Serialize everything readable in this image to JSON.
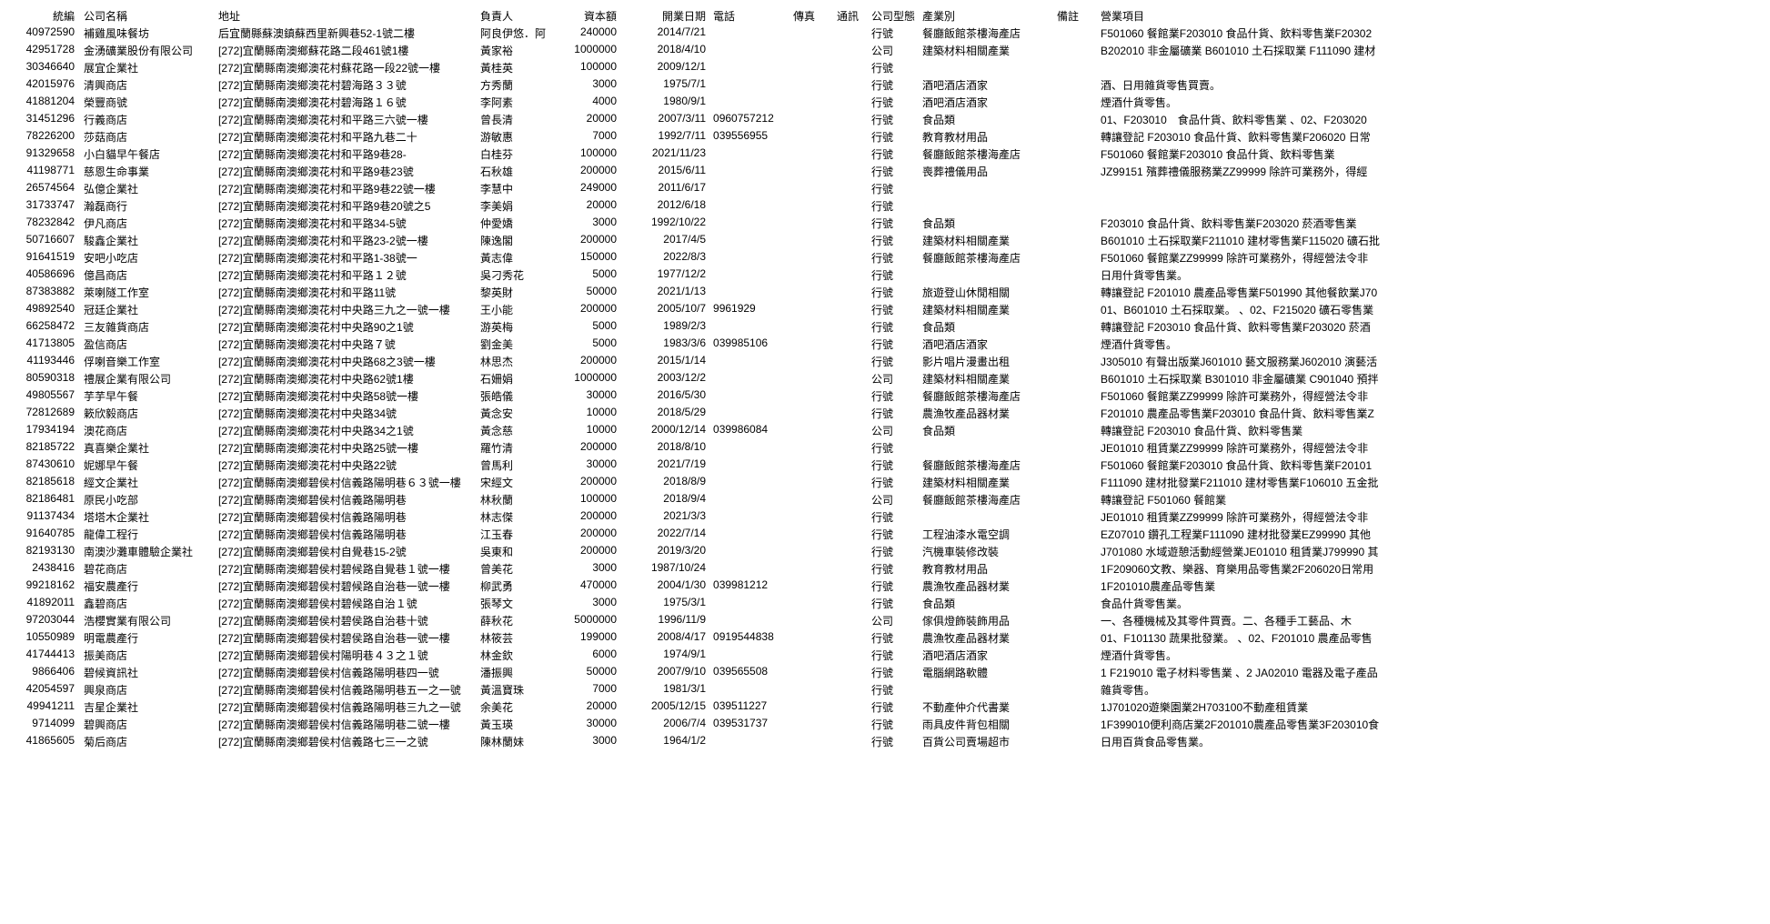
{
  "columns": [
    "統編",
    "公司名稱",
    "地址",
    "負責人",
    "資本額",
    "開業日期",
    "電話",
    "傳真",
    "通訊",
    "公司型態",
    "產業別",
    "備註",
    "營業項目"
  ],
  "rows": [
    [
      "40972590",
      "補雞風味餐坊",
      "后宜蘭縣蘇澳鎮蘇西里新興巷52-1號二樓",
      "阿良伊悠．阿",
      "240000",
      "2014/7/21",
      "",
      "",
      "",
      "行號",
      "餐廳飯館茶樓海產店",
      "",
      "F501060 餐館業F203010 食品什貨、飲料零售業F20302"
    ],
    [
      "42951728",
      "金湧礦業股份有限公司",
      "[272]宜蘭縣南澳鄉蘇花路二段461號1樓",
      "黃家裕",
      "1000000",
      "2018/4/10",
      "",
      "",
      "",
      "公司",
      "建築材料相關產業",
      "",
      "B202010 非金屬礦業 B601010 土石採取業 F111090 建材"
    ],
    [
      "30346640",
      "展宜企業社",
      "[272]宜蘭縣南澳鄉澳花村蘇花路一段22號一樓",
      "黃桂英",
      "100000",
      "2009/12/1",
      "",
      "",
      "",
      "行號",
      "",
      "",
      ""
    ],
    [
      "42015976",
      "清興商店",
      "[272]宜蘭縣南澳鄉澳花村碧海路３３號",
      "方秀蘭",
      "3000",
      "1975/7/1",
      "",
      "",
      "",
      "行號",
      "酒吧酒店酒家",
      "",
      "酒、日用雜貨零售買賣。"
    ],
    [
      "41881204",
      "榮豐商號",
      "[272]宜蘭縣南澳鄉澳花村碧海路１６號",
      "李阿素",
      "4000",
      "1980/9/1",
      "",
      "",
      "",
      "行號",
      "酒吧酒店酒家",
      "",
      "煙酒什貨零售。"
    ],
    [
      "31451296",
      "行義商店",
      "[272]宜蘭縣南澳鄉澳花村和平路三六號一樓",
      "曾長清",
      "20000",
      "2007/3/11",
      "0960757212",
      "",
      "",
      "行號",
      "食品類",
      "",
      "01、F203010　食品什貨、飲料零售業 、02、F203020"
    ],
    [
      "78226200",
      "莎菇商店",
      "[272]宜蘭縣南澳鄉澳花村和平路九巷二十",
      "游敏惠",
      "7000",
      "1992/7/11",
      "039556955",
      "",
      "",
      "行號",
      "教育教材用品",
      "",
      "轉讓登記 F203010 食品什貨、飲料零售業F206020 日常"
    ],
    [
      "91329658",
      "小白貓早午餐店",
      "[272]宜蘭縣南澳鄉澳花村和平路9巷28-",
      "白桂芬",
      "100000",
      "2021/11/23",
      "",
      "",
      "",
      "行號",
      "餐廳飯館茶樓海產店",
      "",
      "F501060 餐館業F203010 食品什貨、飲料零售業"
    ],
    [
      "41198771",
      "慈恩生命事業",
      "[272]宜蘭縣南澳鄉澳花村和平路9巷23號",
      "石秋雄",
      "200000",
      "2015/6/11",
      "",
      "",
      "",
      "行號",
      "喪葬禮儀用品",
      "",
      "JZ99151 殯葬禮儀服務業ZZ99999 除許可業務外，得經"
    ],
    [
      "26574564",
      "弘億企業社",
      "[272]宜蘭縣南澳鄉澳花村和平路9巷22號一樓",
      "李慧中",
      "249000",
      "2011/6/17",
      "",
      "",
      "",
      "行號",
      "",
      "",
      ""
    ],
    [
      "31733747",
      "瀚磊商行",
      "[272]宜蘭縣南澳鄉澳花村和平路9巷20號之5",
      "李美娟",
      "20000",
      "2012/6/18",
      "",
      "",
      "",
      "行號",
      "",
      "",
      ""
    ],
    [
      "78232842",
      "伊凡商店",
      "[272]宜蘭縣南澳鄉澳花村和平路34-5號",
      "仲愛嬌",
      "3000",
      "1992/10/22",
      "",
      "",
      "",
      "行號",
      "食品類",
      "",
      "F203010 食品什貨、飲料零售業F203020 菸酒零售業"
    ],
    [
      "50716607",
      "駿鑫企業社",
      "[272]宜蘭縣南澳鄉澳花村和平路23-2號一樓",
      "陳逸閣",
      "200000",
      "2017/4/5",
      "",
      "",
      "",
      "行號",
      "建築材料相關產業",
      "",
      "B601010 土石採取業F211010 建材零售業F115020 礦石批"
    ],
    [
      "91641519",
      "安吧小吃店",
      "[272]宜蘭縣南澳鄉澳花村和平路1-38號一",
      "黃志偉",
      "150000",
      "2022/8/3",
      "",
      "",
      "",
      "行號",
      "餐廳飯館茶樓海產店",
      "",
      "F501060 餐館業ZZ99999 除許可業務外，得經營法令非"
    ],
    [
      "40586696",
      "億昌商店",
      "[272]宜蘭縣南澳鄉澳花村和平路１２號",
      "吳刁秀花",
      "5000",
      "1977/12/2",
      "",
      "",
      "",
      "行號",
      "",
      "",
      "日用什貨零售業。"
    ],
    [
      "87383882",
      "萊喇隧工作室",
      "[272]宜蘭縣南澳鄉澳花村和平路11號",
      "黎英財",
      "50000",
      "2021/1/13",
      "",
      "",
      "",
      "行號",
      "旅遊登山休閒相關",
      "",
      "轉讓登記 F201010 農產品零售業F501990 其他餐飲業J70"
    ],
    [
      "49892540",
      "冠廷企業社",
      "[272]宜蘭縣南澳鄉澳花村中央路三九之一號一樓",
      "王小能",
      "200000",
      "2005/10/7",
      "9961929",
      "",
      "",
      "行號",
      "建築材料相關產業",
      "",
      "01、B601010 土石採取業。 、02、F215020 礦石零售業"
    ],
    [
      "66258472",
      "三友雜貨商店",
      "[272]宜蘭縣南澳鄉澳花村中央路90之1號",
      "游英梅",
      "5000",
      "1989/2/3",
      "",
      "",
      "",
      "行號",
      "食品類",
      "",
      "轉讓登記 F203010 食品什貨、飲料零售業F203020 菸酒"
    ],
    [
      "41713805",
      "盈信商店",
      "[272]宜蘭縣南澳鄉澳花村中央路７號",
      "劉金美",
      "5000",
      "1983/3/6",
      "039985106",
      "",
      "",
      "行號",
      "酒吧酒店酒家",
      "",
      "煙酒什貨零售。"
    ],
    [
      "41193446",
      "俘喇音樂工作室",
      "[272]宜蘭縣南澳鄉澳花村中央路68之3號一樓",
      "林思杰",
      "200000",
      "2015/1/14",
      "",
      "",
      "",
      "行號",
      "影片唱片漫畫出租",
      "",
      "J305010 有聲出版業J601010 藝文服務業J602010 演藝活"
    ],
    [
      "80590318",
      "禮展企業有限公司",
      "[272]宜蘭縣南澳鄉澳花村中央路62號1樓",
      "石姍娟",
      "1000000",
      "2003/12/2",
      "",
      "",
      "",
      "公司",
      "建築材料相關產業",
      "",
      "B601010 土石採取業 B301010 非金屬礦業 C901040 預拌"
    ],
    [
      "49805567",
      "芋芋早午餐",
      "[272]宜蘭縣南澳鄉澳花村中央路58號一樓",
      "張皓儀",
      "30000",
      "2016/5/30",
      "",
      "",
      "",
      "行號",
      "餐廳飯館茶樓海產店",
      "",
      "F501060 餐館業ZZ99999 除許可業務外，得經營法令非"
    ],
    [
      "72812689",
      "簌欣毅商店",
      "[272]宜蘭縣南澳鄉澳花村中央路34號",
      "黃念安",
      "10000",
      "2018/5/29",
      "",
      "",
      "",
      "行號",
      "農漁牧產品器材業",
      "",
      "F201010 農產品零售業F203010 食品什貨、飲料零售業Z"
    ],
    [
      "17934194",
      "澳花商店",
      "[272]宜蘭縣南澳鄉澳花村中央路34之1號",
      "黃念慈",
      "10000",
      "2000/12/14",
      "039986084",
      "",
      "",
      "公司",
      "食品類",
      "",
      "轉讓登記 F203010 食品什貨、飲料零售業"
    ],
    [
      "82185722",
      "真喜樂企業社",
      "[272]宜蘭縣南澳鄉澳花村中央路25號一樓",
      "羅竹清",
      "200000",
      "2018/8/10",
      "",
      "",
      "",
      "行號",
      "",
      "",
      "JE01010 租賃業ZZ99999 除許可業務外，得經營法令非"
    ],
    [
      "87430610",
      "妮娜早午餐",
      "[272]宜蘭縣南澳鄉澳花村中央路22號",
      "曾馬利",
      "30000",
      "2021/7/19",
      "",
      "",
      "",
      "行號",
      "餐廳飯館茶樓海產店",
      "",
      "F501060 餐館業F203010 食品什貨、飲料零售業F20101"
    ],
    [
      "82185618",
      "經文企業社",
      "[272]宜蘭縣南澳鄉碧侯村信義路陽明巷６３號一樓",
      "宋經文",
      "200000",
      "2018/8/9",
      "",
      "",
      "",
      "行號",
      "建築材料相關產業",
      "",
      "F111090 建材批發業F211010 建材零售業F106010 五金批"
    ],
    [
      "82186481",
      "原民小吃部",
      "[272]宜蘭縣南澳鄉碧侯村信義路陽明巷",
      "林秋蘭",
      "100000",
      "2018/9/4",
      "",
      "",
      "",
      "公司",
      "餐廳飯館茶樓海產店",
      "",
      "轉讓登記 F501060 餐館業"
    ],
    [
      "91137434",
      "塔塔木企業社",
      "[272]宜蘭縣南澳鄉碧侯村信義路陽明巷",
      "林志傑",
      "200000",
      "2021/3/3",
      "",
      "",
      "",
      "行號",
      "",
      "",
      "JE01010 租賃業ZZ99999 除許可業務外，得經營法令非"
    ],
    [
      "91640785",
      "龍偉工程行",
      "[272]宜蘭縣南澳鄉碧侯村信義路陽明巷",
      "江玉春",
      "200000",
      "2022/7/14",
      "",
      "",
      "",
      "行號",
      "工程油漆水電空調",
      "",
      "EZ07010 鑽孔工程業F111090 建材批發業EZ99990 其他"
    ],
    [
      "82193130",
      "南澳沙灘車體驗企業社",
      "[272]宜蘭縣南澳鄉碧侯村自覺巷15-2號",
      "吳東和",
      "200000",
      "2019/3/20",
      "",
      "",
      "",
      "行號",
      "汽機車裝修改裝",
      "",
      "J701080 水域遊憩活動經營業JE01010 租賃業J799990 其"
    ],
    [
      "2438416",
      "碧花商店",
      "[272]宜蘭縣南澳鄉碧侯村碧候路自覺巷１號一樓",
      "曾美花",
      "3000",
      "1987/10/24",
      "",
      "",
      "",
      "行號",
      "教育教材用品",
      "",
      "1F209060文教、樂器、育樂用品零售業2F206020日常用"
    ],
    [
      "99218162",
      "福安農產行",
      "[272]宜蘭縣南澳鄉碧侯村碧候路自治巷一號一樓",
      "柳武勇",
      "470000",
      "2004/1/30",
      "039981212",
      "",
      "",
      "行號",
      "農漁牧產品器材業",
      "",
      "1F201010農產品零售業"
    ],
    [
      "41892011",
      "鑫碧商店",
      "[272]宜蘭縣南澳鄉碧侯村碧候路自治１號",
      "張琴文",
      "3000",
      "1975/3/1",
      "",
      "",
      "",
      "行號",
      "食品類",
      "",
      "食品什貨零售業。"
    ],
    [
      "97203044",
      "浩櫻實業有限公司",
      "[272]宜蘭縣南澳鄉碧侯村碧侯路自治巷十號",
      "薛秋花",
      "5000000",
      "1996/11/9",
      "",
      "",
      "",
      "公司",
      "傢俱燈飾裝飾用品",
      "",
      "一、各種機械及其零件買賣。二、各種手工藝品、木"
    ],
    [
      "10550989",
      "明電農產行",
      "[272]宜蘭縣南澳鄉碧侯村碧侯路自治巷一號一樓",
      "林筱芸",
      "199000",
      "2008/4/17",
      "0919544838",
      "",
      "",
      "行號",
      "農漁牧產品器材業",
      "",
      "01、F101130 蔬果批發業。 、02、F201010 農產品零售"
    ],
    [
      "41744413",
      "振美商店",
      "[272]宜蘭縣南澳鄉碧侯村陽明巷４３之１號",
      "林金欽",
      "6000",
      "1974/9/1",
      "",
      "",
      "",
      "行號",
      "酒吧酒店酒家",
      "",
      "煙酒什貨零售。"
    ],
    [
      "9866406",
      "碧候資訊社",
      "[272]宜蘭縣南澳鄉碧侯村信義路陽明巷四一號",
      "潘振興",
      "50000",
      "2007/9/10",
      "039565508",
      "",
      "",
      "行號",
      "電腦網路軟體",
      "",
      "1 F219010 電子材料零售業 、2 JA02010 電器及電子產品"
    ],
    [
      "42054597",
      "興泉商店",
      "[272]宜蘭縣南澳鄉碧侯村信義路陽明巷五一之一號",
      "黃溫寶珠",
      "7000",
      "1981/3/1",
      "",
      "",
      "",
      "行號",
      "",
      "",
      "雜貨零售。"
    ],
    [
      "49941211",
      "吉星企業社",
      "[272]宜蘭縣南澳鄉碧侯村信義路陽明巷三九之一號",
      "余美花",
      "20000",
      "2005/12/15",
      "039511227",
      "",
      "",
      "行號",
      "不動產仲介代書業",
      "",
      "1J701020遊樂園業2H703100不動產租賃業"
    ],
    [
      "9714099",
      "碧興商店",
      "[272]宜蘭縣南澳鄉碧侯村信義路陽明巷二號一樓",
      "黃玉瑛",
      "30000",
      "2006/7/4",
      "039531737",
      "",
      "",
      "行號",
      "雨具皮件背包相關",
      "",
      "1F399010便利商店業2F201010農產品零售業3F203010食"
    ],
    [
      "41865605",
      "菊后商店",
      "[272]宜蘭縣南澳鄉碧侯村信義路七三一之號",
      "陳林蘭妹",
      "3000",
      "1964/1/2",
      "",
      "",
      "",
      "行號",
      "百貨公司賣場超市",
      "",
      "日用百貨食品零售業。"
    ]
  ]
}
